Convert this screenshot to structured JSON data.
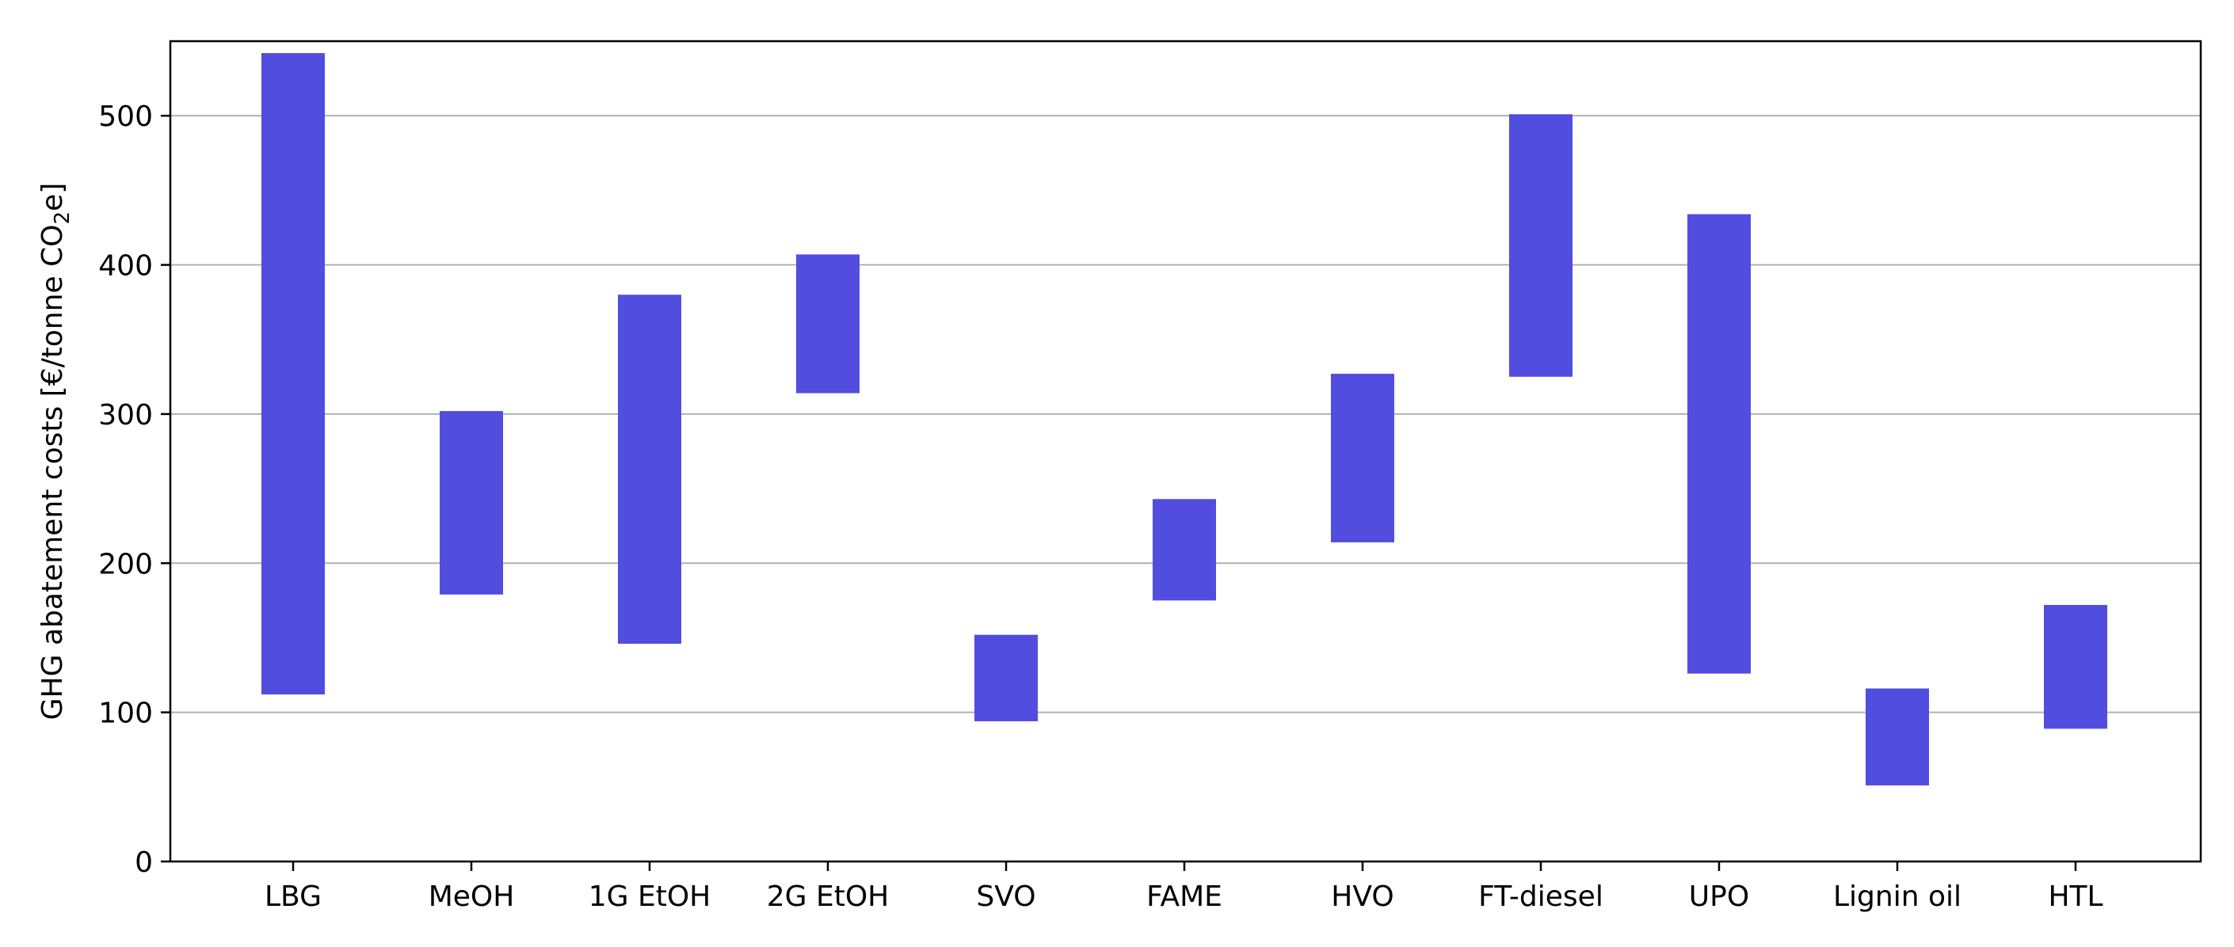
{
  "chart_data": {
    "type": "bar",
    "subtype": "floating-range",
    "title": "",
    "xlabel": "",
    "ylabel": "GHG abatement costs [€/tonne CO",
    "ylabel_subscript": "2",
    "ylabel_suffix": "e]",
    "ylim": [
      0,
      550
    ],
    "yticks": [
      0,
      100,
      200,
      300,
      400,
      500
    ],
    "grid": "y-major",
    "bar_color": "#514ddf",
    "categories": [
      "LBG",
      "MeOH",
      "1G EtOH",
      "2G EtOH",
      "SVO",
      "FAME",
      "HVO",
      "FT-diesel",
      "UPO",
      "Lignin oil",
      "HTL"
    ],
    "low": [
      112,
      179,
      146,
      314,
      94,
      175,
      214,
      325,
      126,
      51,
      89
    ],
    "high": [
      542,
      302,
      380,
      407,
      152,
      243,
      327,
      501,
      434,
      116,
      172
    ]
  }
}
